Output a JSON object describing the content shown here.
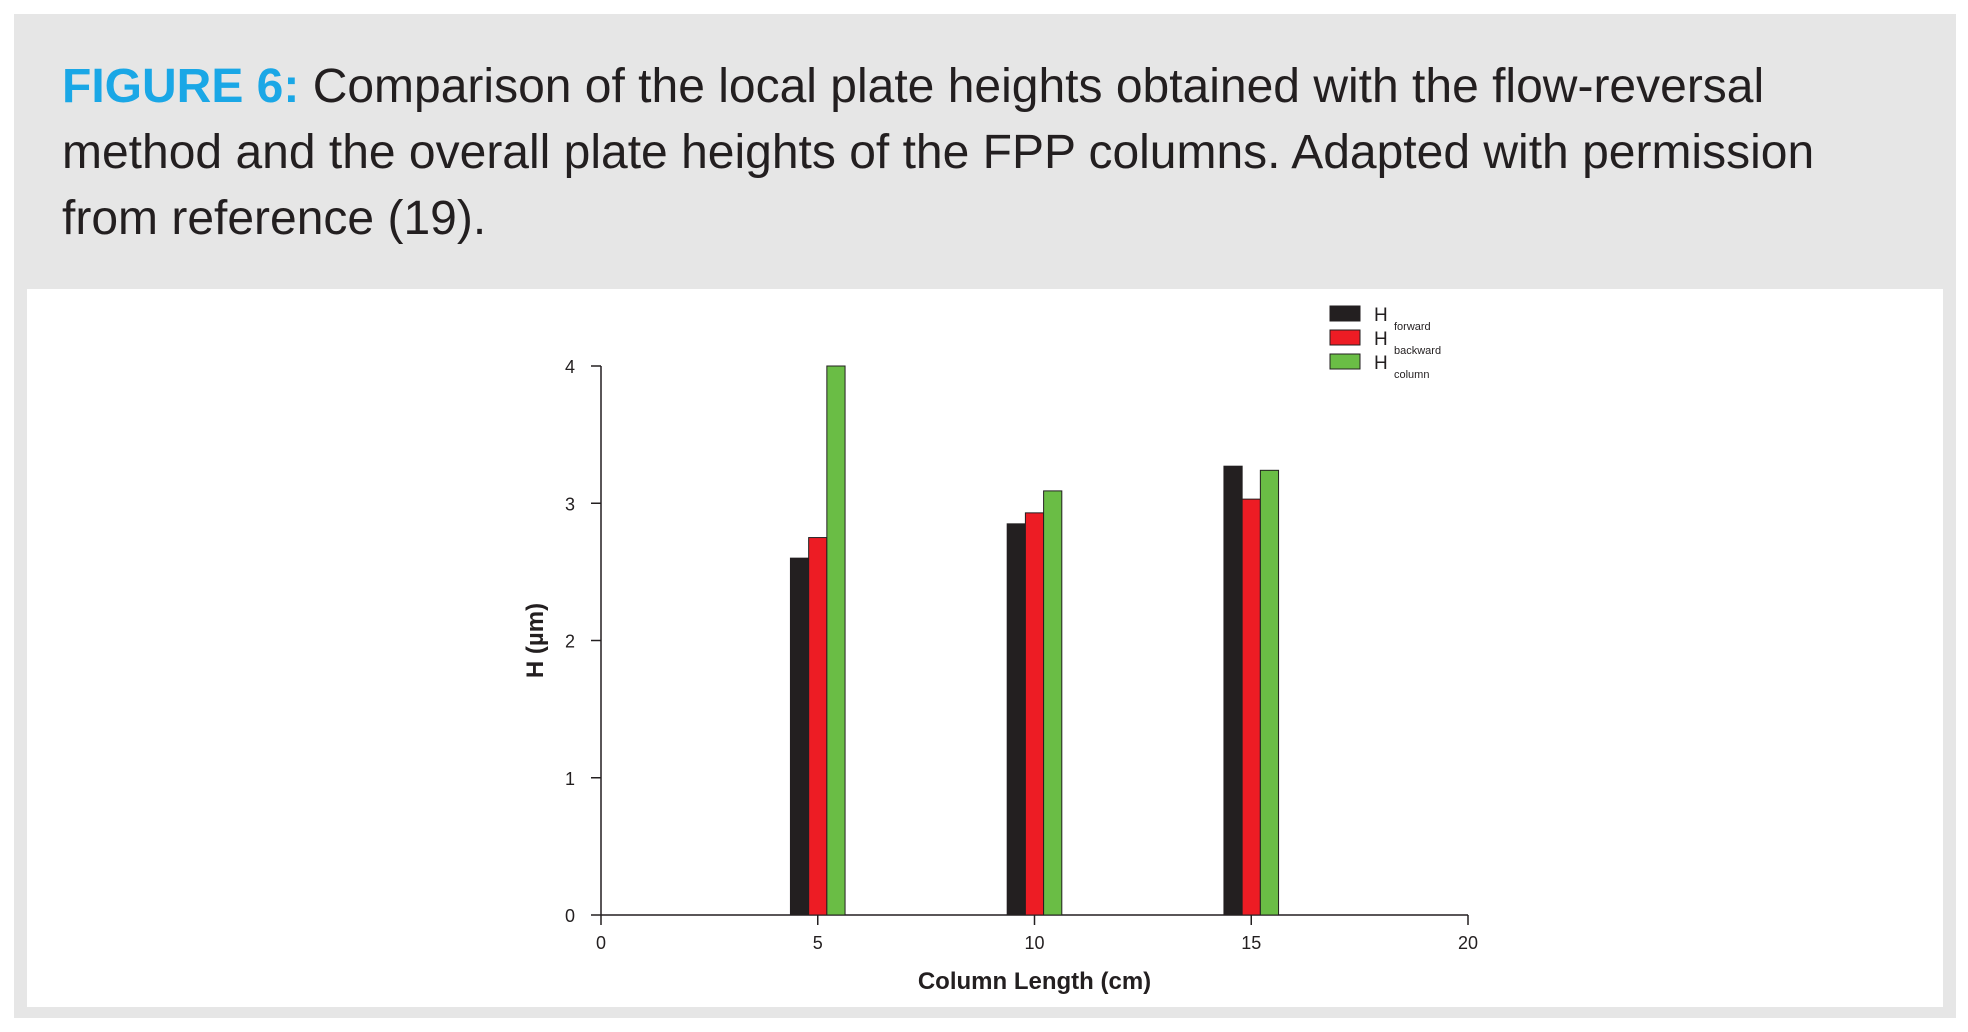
{
  "caption": {
    "label": "FIGURE 6:",
    "text": " Comparison of the local plate heights obtained with the flow-reversal method and the overall plate heights of the FPP columns. Adapted with permission from reference (19)."
  },
  "colors": {
    "caption_label": "#1aa7e6",
    "panel_background": "#e6e6e6",
    "forward": "#231f20",
    "backward": "#ed1c24",
    "column": "#6abd45"
  },
  "chart_data": {
    "type": "bar",
    "xlabel": "Column Length (cm)",
    "ylabel": "H (µm)",
    "xlim": [
      0,
      20
    ],
    "ylim": [
      0,
      4
    ],
    "xticks": [
      0,
      5,
      10,
      15,
      20
    ],
    "yticks": [
      0,
      1,
      2,
      3,
      4
    ],
    "categories": [
      5,
      10,
      15
    ],
    "series": [
      {
        "name": "H",
        "subscript": "forward",
        "color": "#231f20",
        "values": [
          2.6,
          2.85,
          3.27
        ]
      },
      {
        "name": "H",
        "subscript": "backward",
        "color": "#ed1c24",
        "values": [
          2.75,
          2.93,
          3.03
        ]
      },
      {
        "name": "H",
        "subscript": "column",
        "color": "#6abd45",
        "values": [
          4.0,
          3.09,
          3.24
        ]
      }
    ],
    "legend_position": "top-right",
    "grid": false
  }
}
